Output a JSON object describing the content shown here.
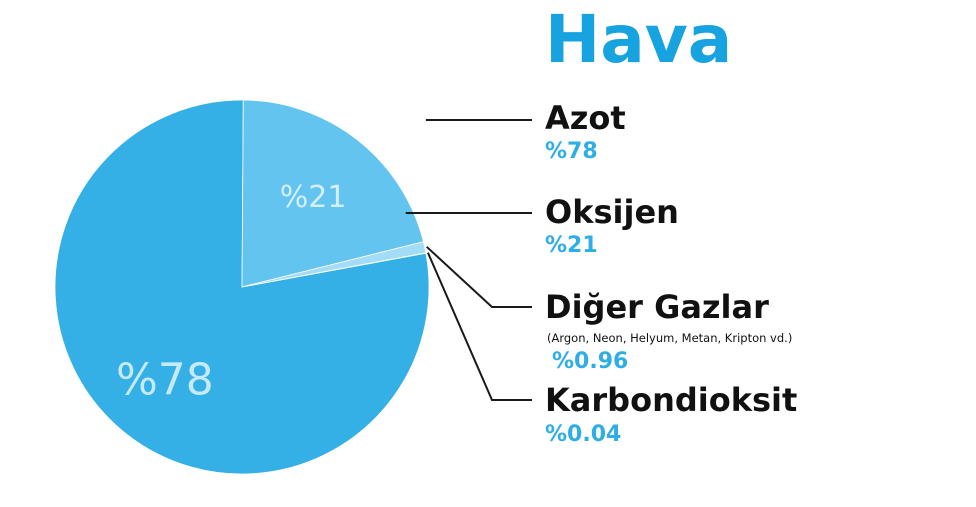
{
  "chart_data": {
    "type": "pie",
    "title": "Hava",
    "slices": [
      {
        "name": "Azot",
        "value": 78,
        "value_label": "%78",
        "slice_label": "%78",
        "note": "",
        "color": "#34b0e6"
      },
      {
        "name": "Oksijen",
        "value": 21,
        "value_label": "%21",
        "slice_label": "%21",
        "note": "",
        "color": "#64c4f0"
      },
      {
        "name": "Diğer Gazlar",
        "value": 0.96,
        "value_label": "%0.96",
        "slice_label": "",
        "note": "(Argon, Neon, Helyum, Metan, Kripton vd.)",
        "color": "#a3dcf6"
      },
      {
        "name": "Karbondioksit",
        "value": 0.04,
        "value_label": "%0.04",
        "slice_label": "",
        "note": "",
        "color": "#d4eefb"
      }
    ],
    "legend_placement": "right"
  }
}
